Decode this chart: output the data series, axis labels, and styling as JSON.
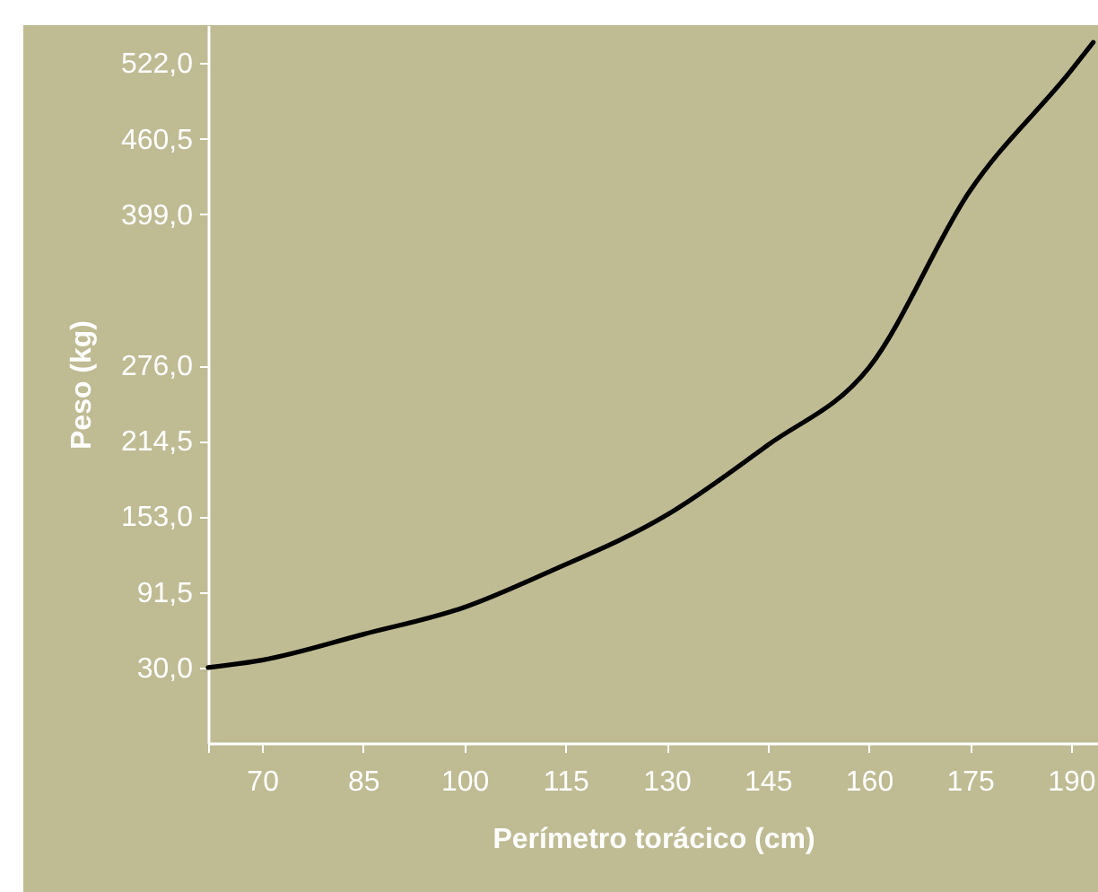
{
  "chart_data": {
    "type": "line",
    "xlabel": "Perímetro torácico (cm)",
    "ylabel": "Peso (kg)",
    "x": [
      62,
      70,
      85,
      100,
      112.6,
      130,
      145,
      160,
      175,
      190,
      193.3
    ],
    "series": [
      {
        "color": "#000000",
        "values": [
          30,
          36,
          57,
          79,
          108,
          154,
          211,
          274,
          418,
          516,
          539
        ]
      }
    ],
    "xlim": [
      62,
      194
    ],
    "xticks": [
      {
        "value": 62,
        "label": null
      },
      70,
      85,
      100,
      115,
      130,
      145,
      160,
      175,
      190
    ],
    "ylim": [
      -31.5,
      553
    ],
    "yticks": [
      {
        "value": 30,
        "label": "30,0"
      },
      {
        "value": 91.5,
        "label": "91,5"
      },
      {
        "value": 153,
        "label": "153,0"
      },
      {
        "value": 214.5,
        "label": "214,5"
      },
      {
        "value": 276,
        "label": "276,0"
      },
      {
        "value": 399,
        "label": "399,0"
      },
      {
        "value": 460.5,
        "label": "460,5"
      },
      {
        "value": 522,
        "label": "522,0"
      }
    ],
    "grid": false,
    "marker": "none",
    "line_style": "solid"
  }
}
